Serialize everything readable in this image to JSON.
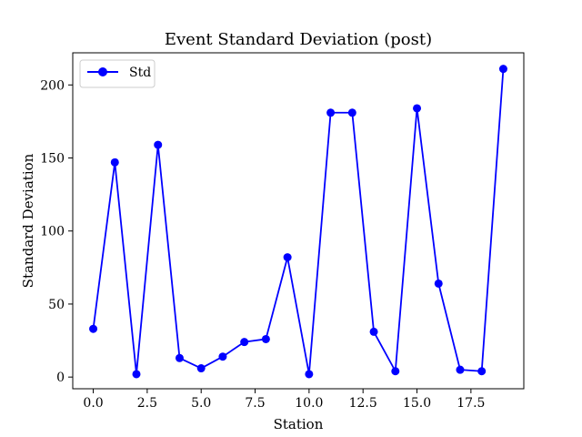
{
  "chart_data": {
    "type": "line",
    "title": "Event Standard Deviation (post)",
    "xlabel": "Station",
    "ylabel": "Standard Deviation",
    "xlim": [
      -0.95,
      19.95
    ],
    "ylim": [
      -8,
      222
    ],
    "xticks": [
      0,
      2.5,
      5,
      7.5,
      10,
      12.5,
      15,
      17.5
    ],
    "xtick_labels": [
      "0.0",
      "2.5",
      "5.0",
      "7.5",
      "10.0",
      "12.5",
      "15.0",
      "17.5"
    ],
    "yticks": [
      0,
      50,
      100,
      150,
      200
    ],
    "ytick_labels": [
      "0",
      "50",
      "100",
      "150",
      "200"
    ],
    "grid": false,
    "legend_position": "upper-left",
    "series": [
      {
        "name": "Std",
        "color": "#0000ff",
        "marker": "circle",
        "x": [
          0,
          1,
          2,
          3,
          4,
          5,
          6,
          7,
          8,
          9,
          10,
          11,
          12,
          13,
          14,
          15,
          16,
          17,
          18,
          19
        ],
        "values": [
          33,
          147,
          2,
          159,
          13,
          6,
          14,
          24,
          26,
          82,
          2,
          181,
          181,
          31,
          4,
          184,
          64,
          5,
          4,
          211
        ]
      }
    ]
  }
}
